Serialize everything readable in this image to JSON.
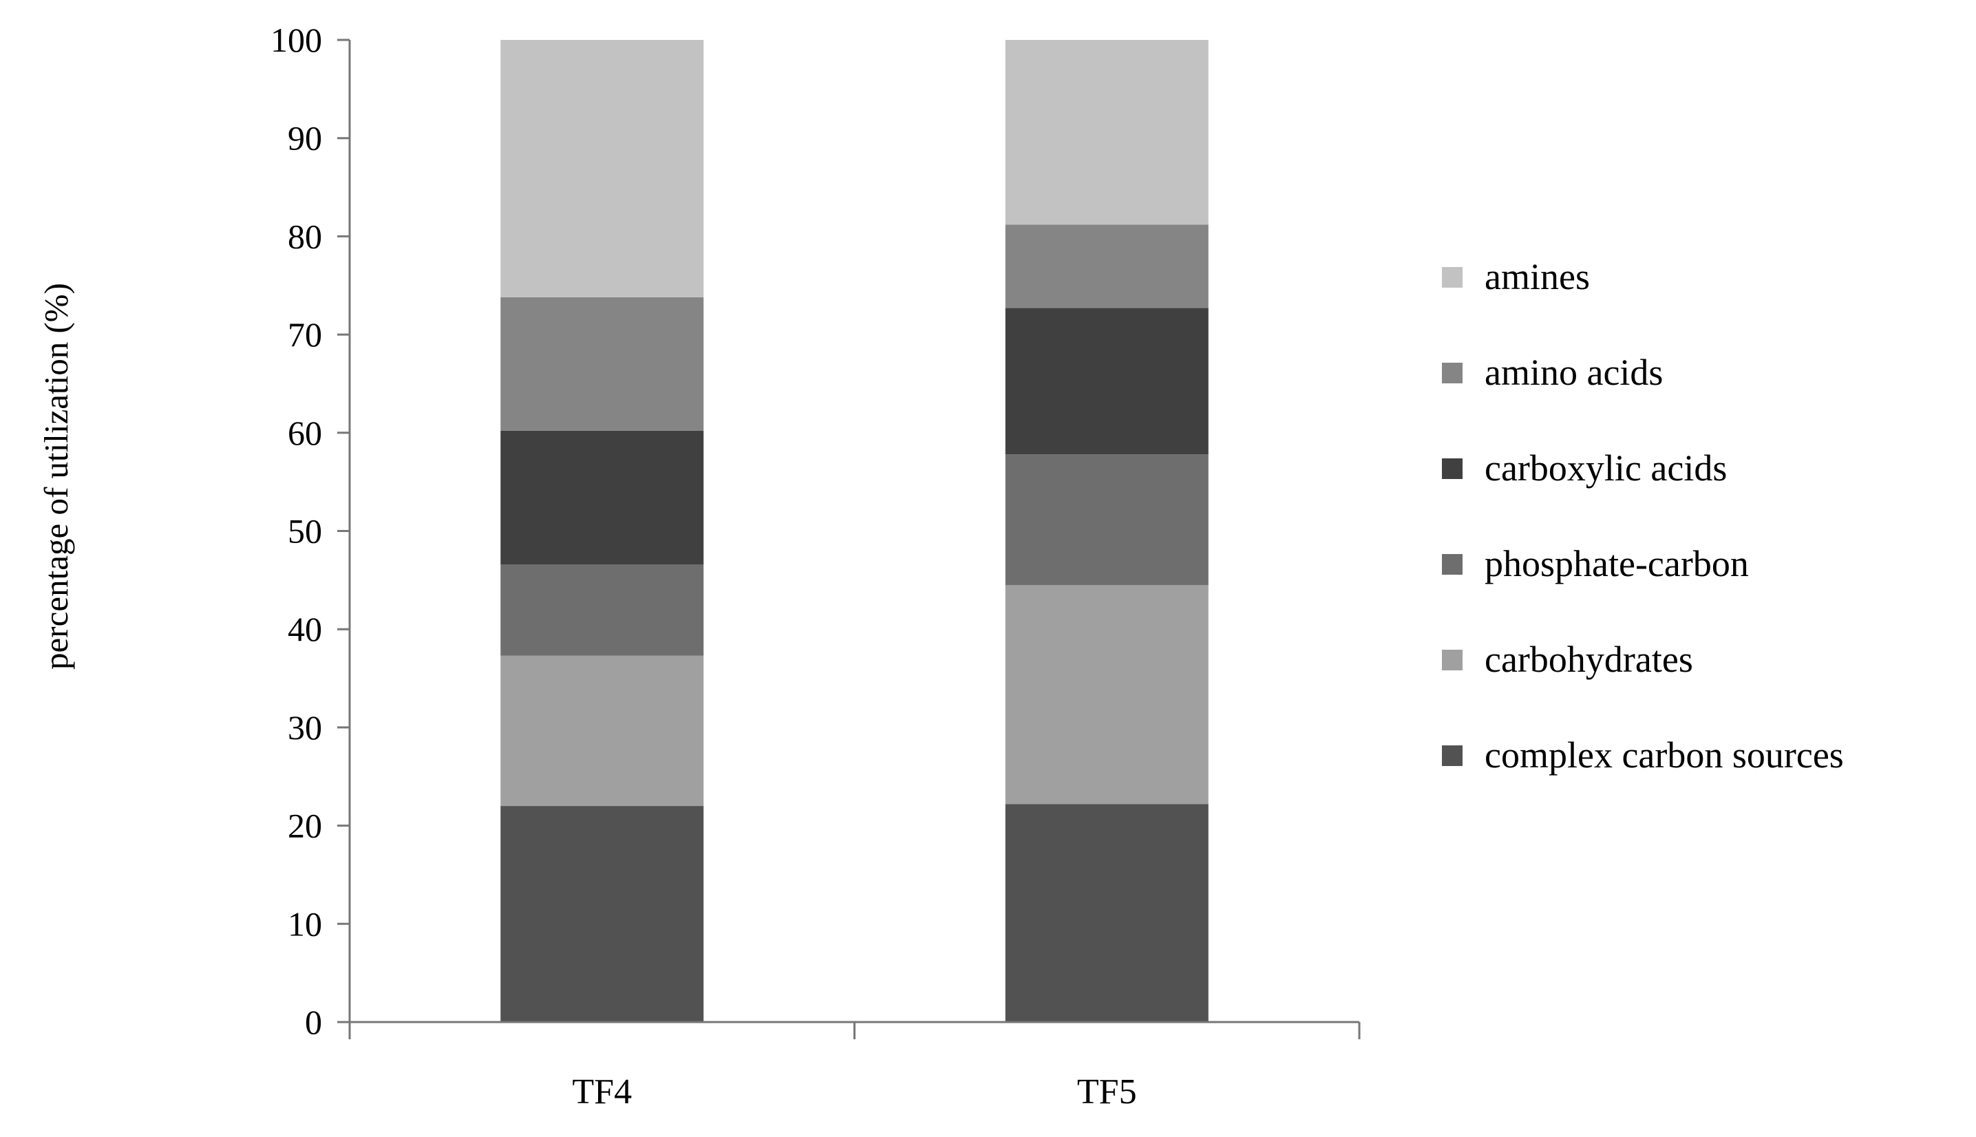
{
  "chart_data": {
    "type": "bar",
    "stacked": true,
    "title": "",
    "xlabel": "",
    "ylabel": "percentage of utilization  (%)",
    "ylim": [
      0,
      100
    ],
    "yticks": [
      0,
      10,
      20,
      30,
      40,
      50,
      60,
      70,
      80,
      90,
      100
    ],
    "grid": false,
    "legend_position": "right",
    "categories": [
      "TF4",
      "TF5"
    ],
    "series": [
      {
        "name": "complex carbon sources",
        "values": [
          22,
          22.2
        ],
        "color": "#525252"
      },
      {
        "name": "carbohydrates",
        "values": [
          15.3,
          22.3
        ],
        "color": "#a0a0a0"
      },
      {
        "name": "phosphate-carbon",
        "values": [
          9.3,
          13.3
        ],
        "color": "#6e6e6e"
      },
      {
        "name": "carboxylic acids",
        "values": [
          13.6,
          14.9
        ],
        "color": "#404040"
      },
      {
        "name": "amino acids",
        "values": [
          13.6,
          8.5
        ],
        "color": "#858585"
      },
      {
        "name": "amines",
        "values": [
          26.2,
          18.8
        ],
        "color": "#c2c2c2"
      }
    ]
  }
}
